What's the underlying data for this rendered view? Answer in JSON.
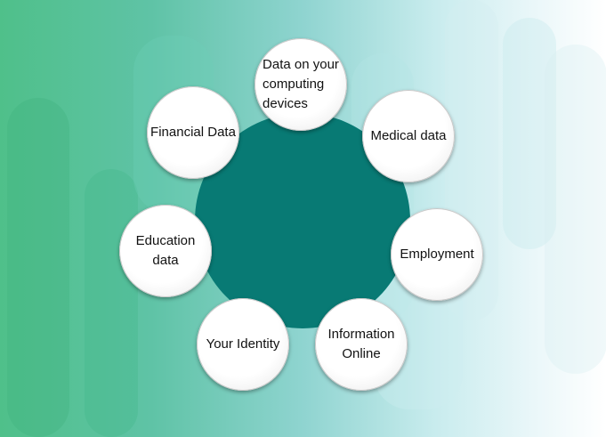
{
  "diagram": {
    "colors": {
      "hub": "#087a74",
      "node_fill": "#ffffff",
      "text": "#111111"
    },
    "nodes": [
      {
        "label": "Data on your\ncomputing\ndevices"
      },
      {
        "label": "Medical data"
      },
      {
        "label": "Employment"
      },
      {
        "label": "Information\nOnline"
      },
      {
        "label": "Your Identity"
      },
      {
        "label": "Education data"
      },
      {
        "label": "Financial Data"
      }
    ]
  }
}
